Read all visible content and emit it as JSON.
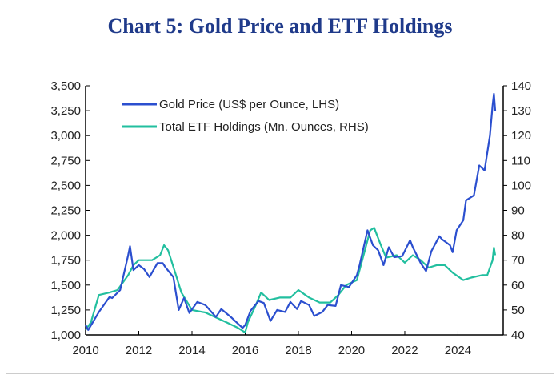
{
  "chart_data": {
    "type": "line",
    "title": "Chart 5: Gold Price and ETF Holdings",
    "xlim": [
      2010,
      2025.7
    ],
    "x_ticks": [
      "2010",
      "2012",
      "2014",
      "2016",
      "2018",
      "2020",
      "2022",
      "2024"
    ],
    "y_left": {
      "lim": [
        1000,
        3500
      ],
      "ticks": [
        "1,000",
        "1,250",
        "1,500",
        "1,750",
        "2,000",
        "2,250",
        "2,500",
        "2,750",
        "3,000",
        "3,250",
        "3,500"
      ]
    },
    "y_right": {
      "lim": [
        40,
        140
      ],
      "ticks": [
        "40",
        "50",
        "60",
        "70",
        "80",
        "90",
        "100",
        "110",
        "120",
        "130",
        "140"
      ]
    },
    "grid": false,
    "legend_position": "top-left",
    "series": [
      {
        "name": "Gold Price (US$ per Ounce, LHS)",
        "axis": "left",
        "color": "#2b4fcf",
        "x": [
          2010.0,
          2010.1,
          2010.5,
          2010.9,
          2011.0,
          2011.3,
          2011.6,
          2011.67,
          2011.8,
          2012.0,
          2012.2,
          2012.4,
          2012.7,
          2012.9,
          2013.0,
          2013.3,
          2013.5,
          2013.7,
          2013.9,
          2014.2,
          2014.5,
          2014.9,
          2015.1,
          2015.5,
          2015.9,
          2016.0,
          2016.2,
          2016.5,
          2016.7,
          2016.95,
          2017.2,
          2017.5,
          2017.7,
          2017.95,
          2018.1,
          2018.4,
          2018.6,
          2018.9,
          2019.1,
          2019.4,
          2019.6,
          2019.9,
          2020.2,
          2020.3,
          2020.6,
          2020.8,
          2021.0,
          2021.2,
          2021.4,
          2021.6,
          2021.9,
          2022.2,
          2022.3,
          2022.6,
          2022.8,
          2023.0,
          2023.3,
          2023.4,
          2023.7,
          2023.8,
          2023.95,
          2024.2,
          2024.3,
          2024.6,
          2024.8,
          2025.0,
          2025.2,
          2025.3,
          2025.35,
          2025.4
        ],
        "y": [
          1100,
          1050,
          1230,
          1380,
          1370,
          1450,
          1800,
          1890,
          1650,
          1700,
          1660,
          1580,
          1720,
          1720,
          1680,
          1580,
          1250,
          1370,
          1220,
          1330,
          1300,
          1180,
          1260,
          1170,
          1070,
          1100,
          1240,
          1340,
          1320,
          1140,
          1250,
          1230,
          1330,
          1260,
          1340,
          1300,
          1190,
          1230,
          1300,
          1290,
          1500,
          1480,
          1600,
          1700,
          2050,
          1900,
          1850,
          1700,
          1880,
          1780,
          1790,
          1950,
          1880,
          1720,
          1640,
          1840,
          1990,
          1960,
          1900,
          1830,
          2050,
          2150,
          2350,
          2400,
          2700,
          2650,
          3000,
          3300,
          3420,
          3250
        ]
      },
      {
        "name": "Total ETF Holdings (Mn. Ounces, RHS)",
        "axis": "right",
        "color": "#22bf9f",
        "x": [
          2010.0,
          2010.2,
          2010.5,
          2010.9,
          2011.2,
          2011.6,
          2011.8,
          2012.0,
          2012.5,
          2012.8,
          2012.95,
          2013.1,
          2013.4,
          2013.6,
          2014.0,
          2014.5,
          2014.9,
          2015.3,
          2015.7,
          2016.0,
          2016.1,
          2016.4,
          2016.6,
          2016.9,
          2017.3,
          2017.7,
          2018.0,
          2018.4,
          2018.8,
          2019.2,
          2019.5,
          2019.8,
          2020.2,
          2020.4,
          2020.7,
          2020.85,
          2021.1,
          2021.3,
          2021.7,
          2022.0,
          2022.3,
          2022.6,
          2022.9,
          2023.2,
          2023.5,
          2023.8,
          2024.2,
          2024.5,
          2024.9,
          2025.1,
          2025.3,
          2025.35,
          2025.4
        ],
        "y": [
          42,
          45,
          56,
          57,
          58,
          64,
          68,
          70,
          70,
          72,
          76,
          74,
          64,
          57,
          50,
          49,
          47,
          45,
          43,
          41,
          45,
          52,
          57,
          54,
          55,
          55,
          58,
          55,
          53,
          53,
          56,
          60,
          62,
          70,
          82,
          83,
          76,
          71,
          72,
          69,
          72,
          70,
          67,
          68,
          68,
          65,
          62,
          63,
          64,
          64,
          70,
          75,
          72
        ]
      }
    ]
  }
}
